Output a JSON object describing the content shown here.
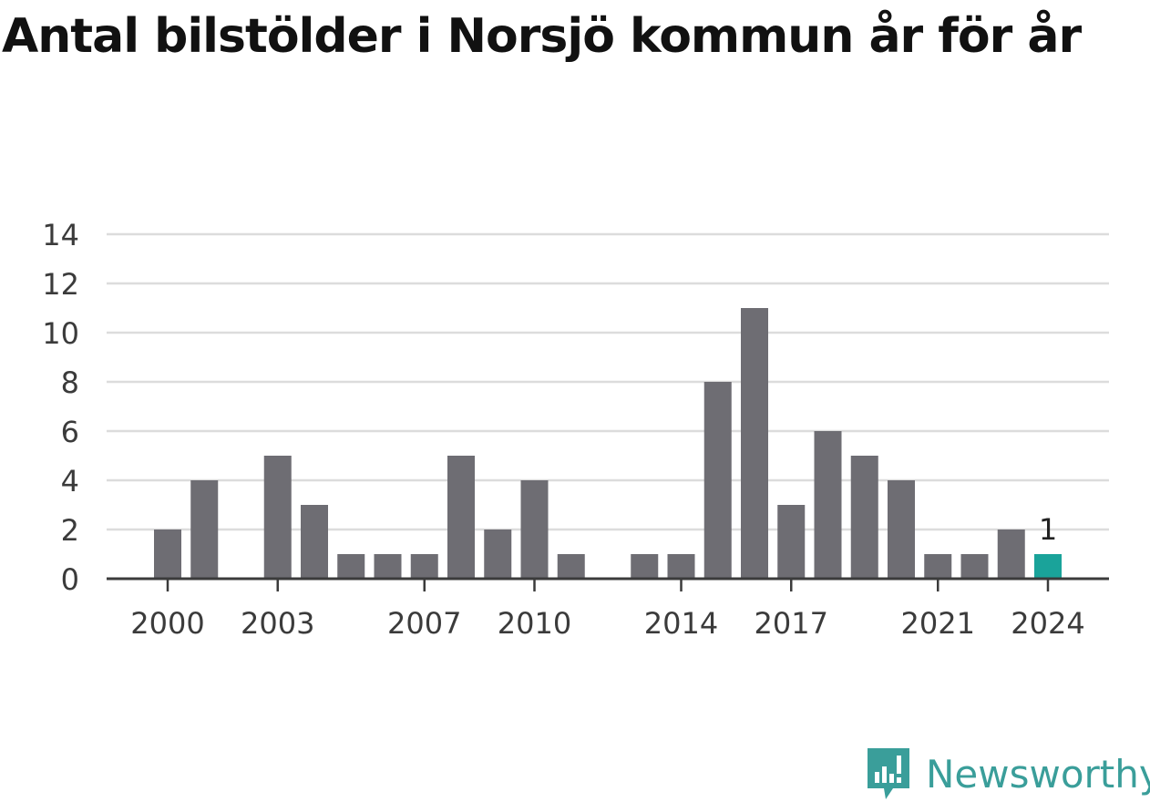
{
  "title": "Antal bilstölder i Norsjö kommun år för år",
  "brand": {
    "name": "Newsworthy",
    "color": "#3a9e9a"
  },
  "colors": {
    "bar": "#6e6d73",
    "highlight": "#1aa39a",
    "grid": "#dcdcdc",
    "axis": "#3b3b3b"
  },
  "chart_data": {
    "type": "bar",
    "categories": [
      "2000",
      "2001",
      "2002",
      "2003",
      "2004",
      "2005",
      "2006",
      "2007",
      "2008",
      "2009",
      "2010",
      "2011",
      "2012",
      "2013",
      "2014",
      "2015",
      "2016",
      "2017",
      "2018",
      "2019",
      "2020",
      "2021",
      "2022",
      "2023",
      "2024"
    ],
    "values": [
      2,
      4,
      0,
      5,
      3,
      1,
      1,
      1,
      5,
      2,
      4,
      1,
      0,
      1,
      1,
      8,
      11,
      3,
      6,
      5,
      4,
      1,
      1,
      2,
      1
    ],
    "highlight_category": "2024",
    "data_labels": [
      {
        "category": "2024",
        "text": "1"
      }
    ],
    "x_tick_labels": [
      "2000",
      "2003",
      "2007",
      "2010",
      "2014",
      "2017",
      "2021",
      "2024"
    ],
    "y_ticks": [
      0,
      2,
      4,
      6,
      8,
      10,
      12,
      14
    ],
    "ylim": [
      0,
      14
    ],
    "xlabel": "",
    "ylabel": "",
    "grid": true,
    "legend": "none"
  }
}
